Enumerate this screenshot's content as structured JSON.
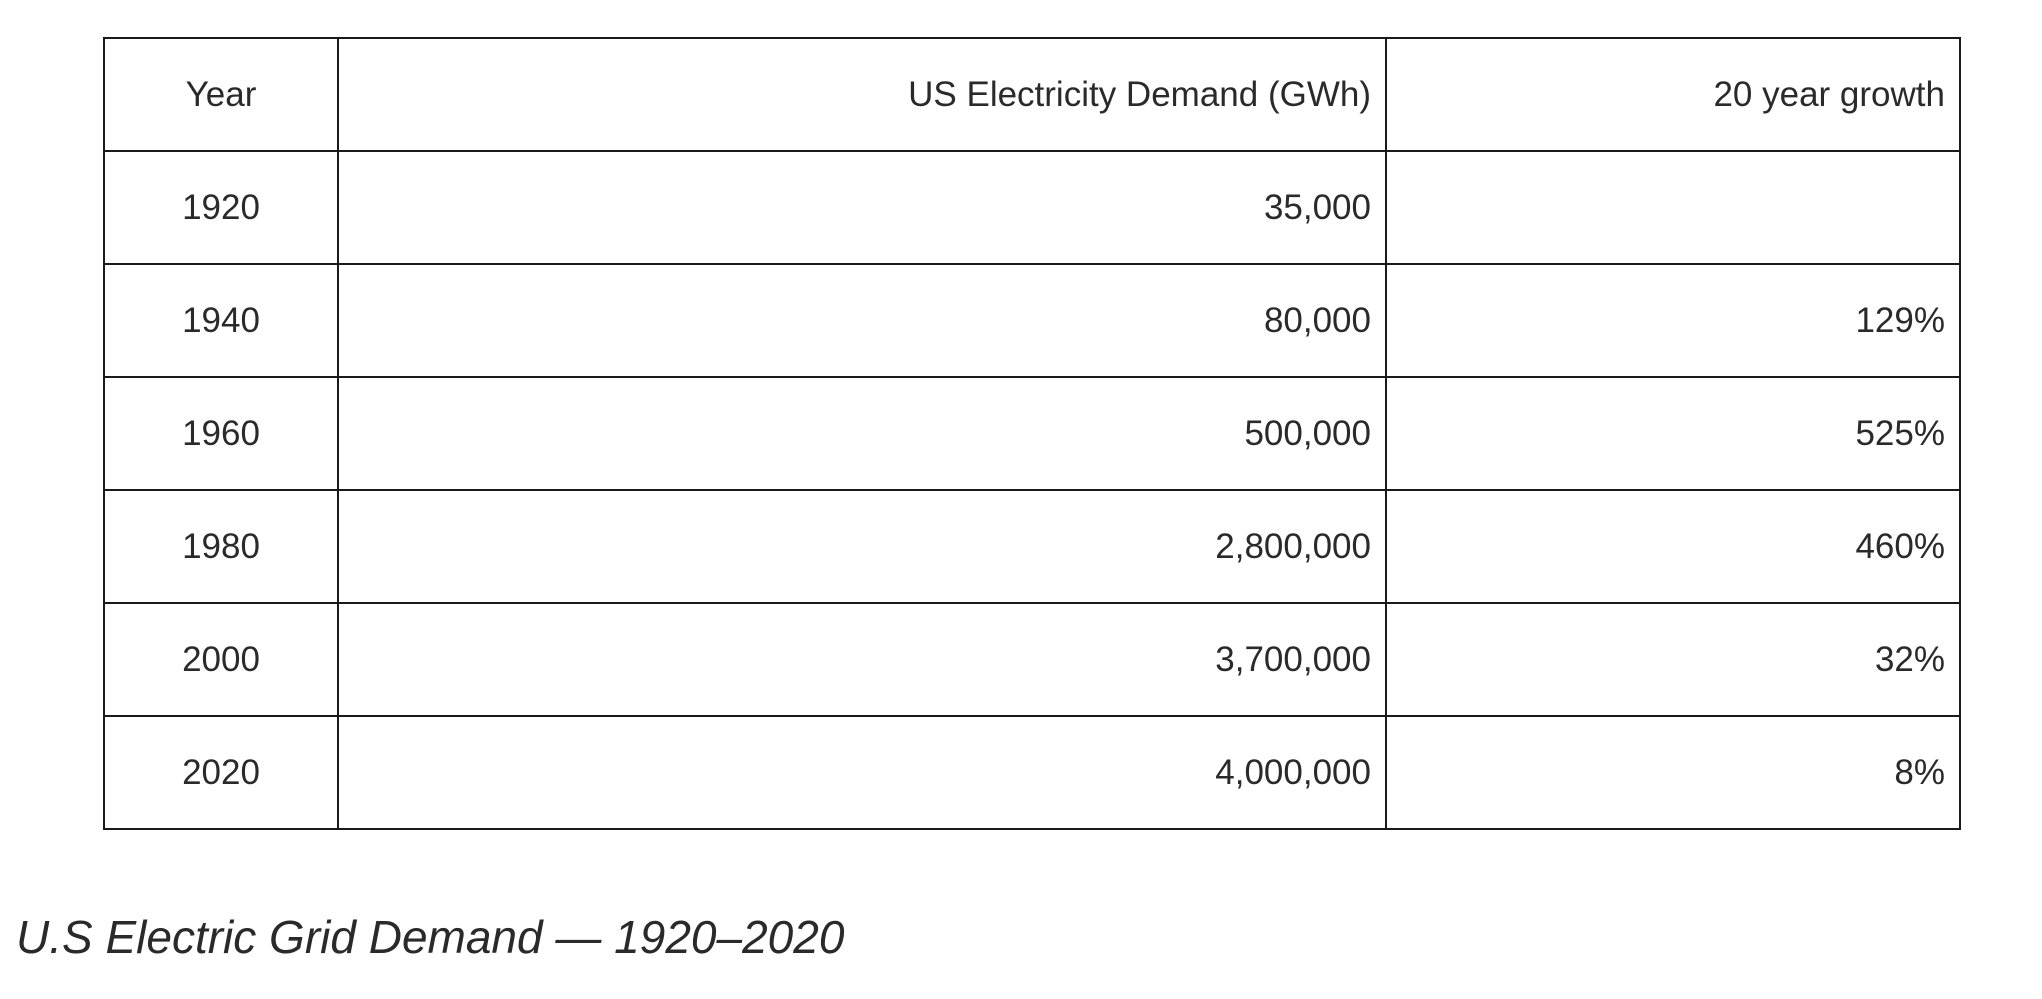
{
  "table": {
    "headers": [
      "Year",
      "US Electricity Demand (GWh)",
      "20 year growth"
    ],
    "rows": [
      [
        "1920",
        "35,000",
        ""
      ],
      [
        "1940",
        "80,000",
        "129%"
      ],
      [
        "1960",
        "500,000",
        "525%"
      ],
      [
        "1980",
        "2,800,000",
        "460%"
      ],
      [
        "2000",
        "3,700,000",
        "32%"
      ],
      [
        "2020",
        "4,000,000",
        "8%"
      ]
    ]
  },
  "caption": "U.S Electric Grid Demand — 1920–2020"
}
